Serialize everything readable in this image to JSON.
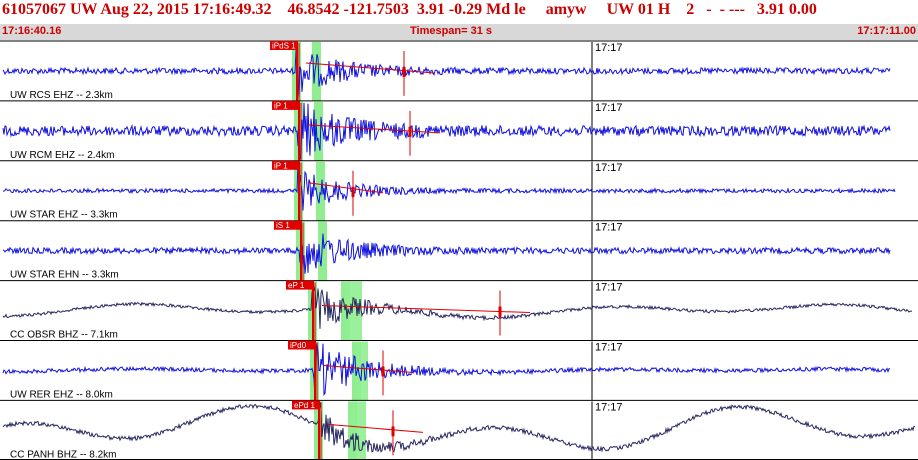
{
  "header": {
    "title": "61057067 UW Aug 22, 2015 17:16:49.32    46.8542 -121.7503  3.91 -0.29 Md le     amyw     UW 01 H    2   -  - ---   3.91 0.00",
    "time_start": "17:16:40.16",
    "timespan": "Timespan=  31 s",
    "time_end": "17:17:11.00"
  },
  "minute_label": "17:17",
  "colors": {
    "trace": "#1010e0",
    "trace_dark": "#262660",
    "pick": "#e00000",
    "window": "#90ee90",
    "grid": "#000000"
  },
  "channels": [
    {
      "label": "UW RCS EHZ -- 2.3km",
      "pick": "iPdS 1",
      "color": "trace"
    },
    {
      "label": "UW RCM EHZ -- 2.4km",
      "pick": "iP 1",
      "color": "trace"
    },
    {
      "label": "UW STAR EHZ -- 3.3km",
      "pick": "iP 1",
      "color": "trace"
    },
    {
      "label": "UW STAR EHN -- 3.3km",
      "pick": "iS 1",
      "color": "trace"
    },
    {
      "label": "CC OBSR BHZ -- 7.1km",
      "pick": "eP 1",
      "color": "trace_dark"
    },
    {
      "label": "UW RER EHZ -- 8.0km",
      "pick": "iPd0",
      "color": "trace"
    },
    {
      "label": "CC PANH BHZ -- 8.2km",
      "pick": "ePd 1",
      "color": "trace_dark"
    }
  ]
}
